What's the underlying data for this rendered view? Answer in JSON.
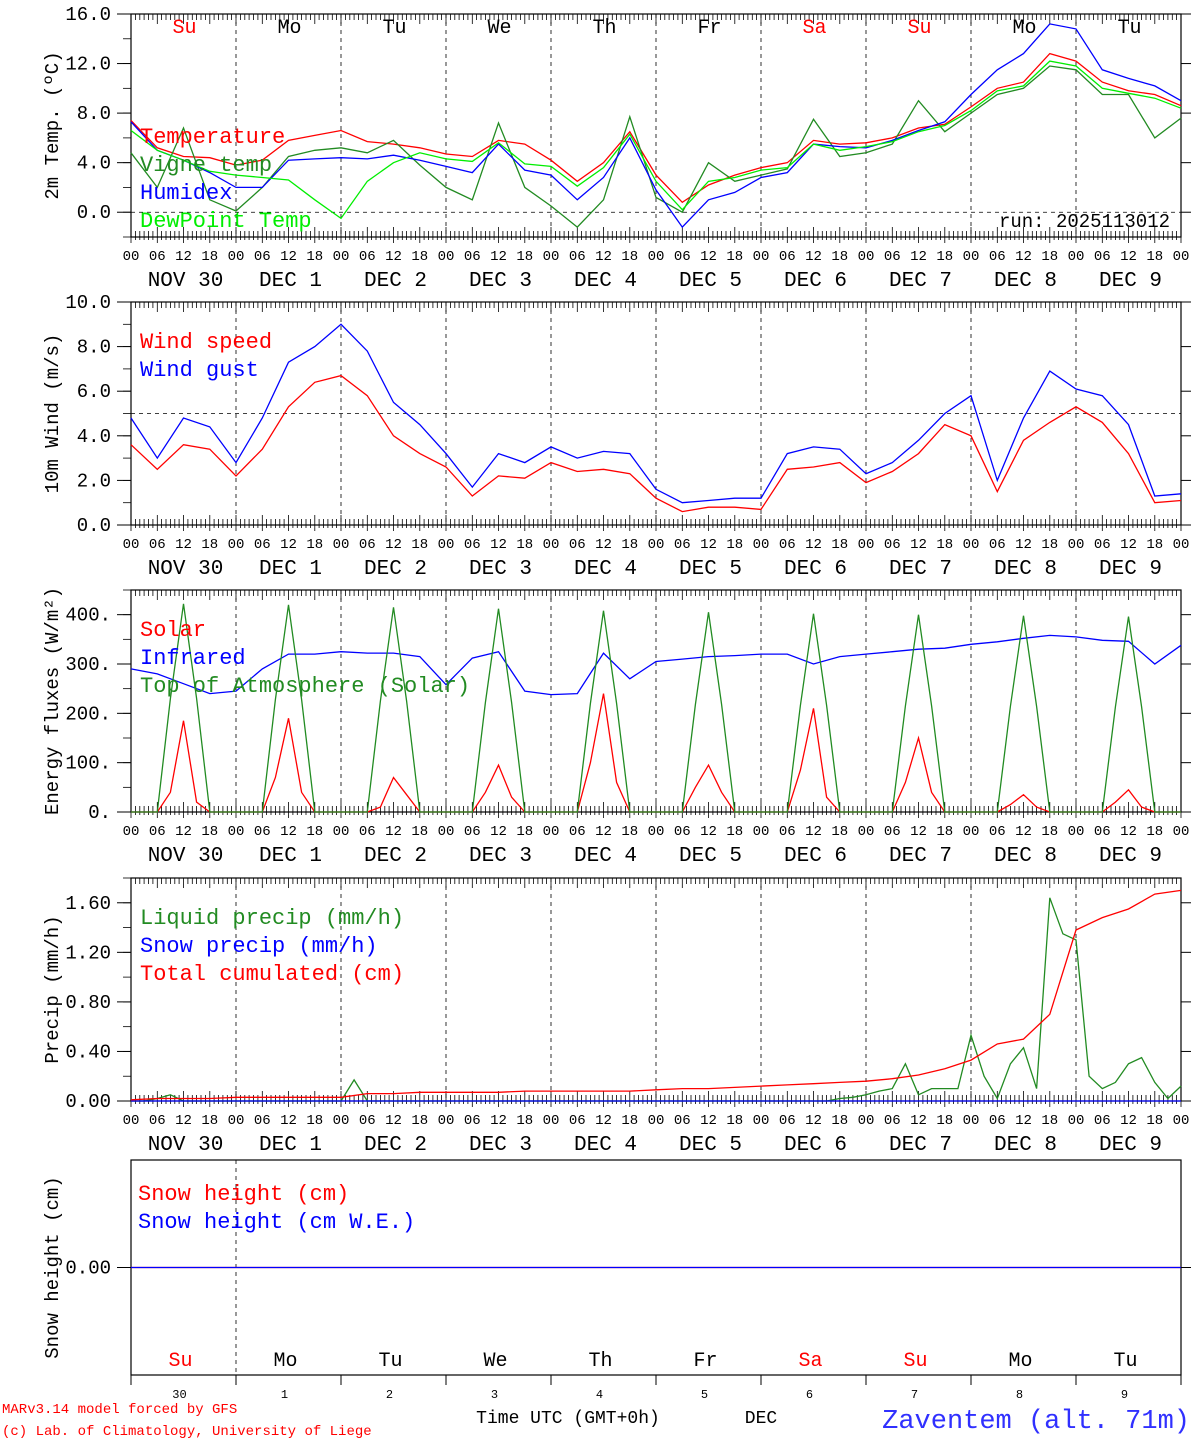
{
  "colors": {
    "temperature": "#ff0000",
    "vigne": "#228b22",
    "humidex": "#0000ff",
    "dewpoint": "#00ee00",
    "black": "#000000",
    "station": "#3030ff"
  },
  "days": [
    {
      "weekday": "Su",
      "date": "NOV 30",
      "num": "30",
      "weekend": true
    },
    {
      "weekday": "Mo",
      "date": "DEC  1",
      "num": "1",
      "weekend": false
    },
    {
      "weekday": "Tu",
      "date": "DEC  2",
      "num": "2",
      "weekend": false
    },
    {
      "weekday": "We",
      "date": "DEC  3",
      "num": "3",
      "weekend": false
    },
    {
      "weekday": "Th",
      "date": "DEC  4",
      "num": "4",
      "weekend": false
    },
    {
      "weekday": "Fr",
      "date": "DEC  5",
      "num": "5",
      "weekend": false
    },
    {
      "weekday": "Sa",
      "date": "DEC  6",
      "num": "6",
      "weekend": true
    },
    {
      "weekday": "Su",
      "date": "DEC  7",
      "num": "7",
      "weekend": true
    },
    {
      "weekday": "Mo",
      "date": "DEC  8",
      "num": "8",
      "weekend": false
    },
    {
      "weekday": "Tu",
      "date": "DEC  9",
      "num": "9",
      "weekend": false
    }
  ],
  "hour_labels": [
    "00",
    "06",
    "12",
    "18"
  ],
  "footer": {
    "model": "MARv3.14 model forced by GFS",
    "copyright": "(c) Lab. of Climatology, University of Liege",
    "xlabel": "Time UTC (GMT+0h)",
    "month": "DEC",
    "station": "Zaventem (alt. 71m)"
  },
  "chart_data": [
    {
      "type": "line",
      "ylabel": "2m Temp. (ºC)",
      "ylim": [
        -2,
        16
      ],
      "yticks": [
        "0.0",
        "4.0",
        "8.0",
        "12.0",
        "16.0"
      ],
      "xlim_hours": [
        0,
        240
      ],
      "step_hours": 6,
      "annotation": "run: 2025113012",
      "series": [
        {
          "name": "Temperature",
          "color": "#ff0000",
          "values": [
            7.4,
            5.2,
            4.5,
            4.4,
            3.8,
            4.2,
            5.8,
            6.2,
            6.6,
            5.7,
            5.5,
            5.2,
            4.7,
            4.5,
            5.8,
            5.5,
            4.2,
            2.5,
            4.0,
            6.5,
            3.0,
            0.8,
            2.2,
            3.0,
            3.6,
            4.0,
            5.8,
            5.5,
            5.6,
            6.0,
            6.8,
            7.1,
            8.5,
            10.0,
            10.5,
            12.8,
            12.2,
            10.5,
            9.8,
            9.5,
            8.6
          ]
        },
        {
          "name": "Vigne temp",
          "color": "#228b22",
          "values": [
            4.8,
            2.0,
            6.8,
            1.0,
            0.1,
            2.0,
            4.5,
            5.0,
            5.2,
            4.8,
            5.8,
            3.8,
            2.0,
            1.0,
            7.2,
            2.0,
            0.5,
            -1.2,
            1.0,
            7.7,
            1.2,
            0.0,
            4.0,
            2.5,
            3.0,
            3.5,
            7.5,
            4.5,
            4.8,
            5.5,
            9.0,
            6.5,
            8.0,
            9.5,
            10.0,
            11.8,
            11.5,
            9.5,
            9.5,
            6.0,
            7.6
          ]
        },
        {
          "name": "Humidex",
          "color": "#0000ff",
          "values": [
            7.3,
            5.0,
            4.2,
            3.2,
            2.0,
            2.0,
            4.2,
            4.3,
            4.4,
            4.3,
            4.6,
            4.2,
            3.7,
            3.2,
            5.5,
            3.4,
            3.0,
            1.0,
            2.8,
            6.0,
            1.8,
            -1.2,
            1.0,
            1.6,
            2.8,
            3.2,
            5.5,
            5.3,
            5.2,
            5.8,
            6.6,
            7.3,
            9.5,
            11.5,
            12.8,
            15.2,
            14.8,
            11.5,
            10.8,
            10.2,
            9.0
          ]
        },
        {
          "name": "DewPoint Temp",
          "color": "#00ee00",
          "values": [
            6.6,
            5.0,
            4.2,
            3.3,
            3.0,
            2.8,
            2.6,
            1.0,
            -0.5,
            2.5,
            4.0,
            4.8,
            4.3,
            4.1,
            5.6,
            3.9,
            3.7,
            2.1,
            3.6,
            6.3,
            2.5,
            0.2,
            2.5,
            2.8,
            3.4,
            3.6,
            5.5,
            5.0,
            5.3,
            5.7,
            6.5,
            7.0,
            8.2,
            9.8,
            10.2,
            12.2,
            11.8,
            10.0,
            9.6,
            9.2,
            8.4
          ]
        }
      ]
    },
    {
      "type": "line",
      "ylabel": "10m Wind (m/s)",
      "ylim": [
        0,
        10
      ],
      "yticks": [
        "0.0",
        "2.0",
        "4.0",
        "6.0",
        "8.0",
        "10.0"
      ],
      "reference_line": 5,
      "step_hours": 6,
      "series": [
        {
          "name": "Wind speed",
          "color": "#ff0000",
          "values": [
            3.6,
            2.5,
            3.6,
            3.4,
            2.2,
            3.4,
            5.3,
            6.4,
            6.7,
            5.8,
            4.0,
            3.2,
            2.6,
            1.3,
            2.2,
            2.1,
            2.8,
            2.4,
            2.5,
            2.3,
            1.2,
            0.6,
            0.8,
            0.8,
            0.7,
            2.5,
            2.6,
            2.8,
            1.9,
            2.4,
            3.2,
            4.5,
            4.0,
            1.5,
            3.8,
            4.6,
            5.3,
            4.6,
            3.2,
            1.0,
            1.1
          ]
        },
        {
          "name": "Wind gust",
          "color": "#0000ff",
          "values": [
            4.8,
            3.0,
            4.8,
            4.4,
            2.8,
            4.8,
            7.3,
            8.0,
            9.0,
            7.8,
            5.5,
            4.5,
            3.2,
            1.7,
            3.2,
            2.8,
            3.5,
            3.0,
            3.3,
            3.2,
            1.6,
            1.0,
            1.1,
            1.2,
            1.2,
            3.2,
            3.5,
            3.4,
            2.3,
            2.8,
            3.8,
            5.0,
            5.8,
            2.0,
            4.8,
            6.9,
            6.1,
            5.8,
            4.5,
            1.3,
            1.4
          ]
        }
      ]
    },
    {
      "type": "line",
      "ylabel": "Energy fluxes (W/m²)",
      "ylim": [
        0,
        450
      ],
      "yticks": [
        "0.",
        "100.",
        "200.",
        "300.",
        "400."
      ],
      "series": [
        {
          "name": "Solar",
          "color": "#ff0000",
          "step_hours": 3,
          "values": [
            0,
            0,
            0,
            40,
            185,
            20,
            0,
            0,
            0,
            0,
            0,
            70,
            190,
            40,
            0,
            0,
            0,
            0,
            0,
            10,
            70,
            35,
            0,
            0,
            0,
            0,
            0,
            40,
            95,
            30,
            0,
            0,
            0,
            0,
            0,
            100,
            240,
            60,
            0,
            0,
            0,
            0,
            0,
            50,
            95,
            40,
            0,
            0,
            0,
            0,
            0,
            85,
            210,
            30,
            0,
            0,
            0,
            0,
            0,
            60,
            150,
            40,
            0,
            0,
            0,
            0,
            0,
            15,
            35,
            10,
            0,
            0,
            0,
            0,
            0,
            20,
            45,
            10,
            0,
            0,
            0
          ]
        },
        {
          "name": "Infrared",
          "color": "#0000ff",
          "step_hours": 6,
          "values": [
            290,
            280,
            260,
            240,
            245,
            290,
            320,
            320,
            325,
            322,
            322,
            315,
            258,
            312,
            325,
            245,
            238,
            240,
            322,
            270,
            305,
            310,
            315,
            317,
            320,
            320,
            300,
            315,
            320,
            325,
            330,
            332,
            340,
            345,
            352,
            358,
            355,
            348,
            346,
            300,
            338
          ]
        },
        {
          "name": "Top of Atmosphere (Solar)",
          "color": "#228b22",
          "step_hours": 3,
          "values": [
            0,
            0,
            0,
            230,
            422,
            230,
            0,
            0,
            0,
            0,
            0,
            228,
            420,
            228,
            0,
            0,
            0,
            0,
            0,
            225,
            415,
            225,
            0,
            0,
            0,
            0,
            0,
            222,
            412,
            222,
            0,
            0,
            0,
            0,
            0,
            220,
            408,
            220,
            0,
            0,
            0,
            0,
            0,
            218,
            405,
            218,
            0,
            0,
            0,
            0,
            0,
            216,
            402,
            216,
            0,
            0,
            0,
            0,
            0,
            215,
            400,
            215,
            0,
            0,
            0,
            0,
            0,
            214,
            398,
            214,
            0,
            0,
            0,
            0,
            0,
            213,
            396,
            213,
            0,
            0,
            0
          ]
        }
      ]
    },
    {
      "type": "line",
      "ylabel": "Precip (mm/h)",
      "ylim": [
        0,
        1.8
      ],
      "yticks": [
        "0.00",
        "0.40",
        "0.80",
        "1.20",
        "1.60"
      ],
      "series": [
        {
          "name": "Liquid precip (mm/h)",
          "color": "#228b22",
          "step_hours": 3,
          "values": [
            0,
            0,
            0.02,
            0.05,
            0,
            0,
            0,
            0,
            0,
            0,
            0,
            0,
            0,
            0,
            0,
            0,
            0,
            0.17,
            0,
            0,
            0,
            0,
            0,
            0,
            0,
            0,
            0,
            0,
            0,
            0,
            0,
            0,
            0,
            0,
            0,
            0,
            0,
            0,
            0,
            0,
            0,
            0,
            0,
            0,
            0,
            0,
            0,
            0,
            0,
            0,
            0,
            0,
            0,
            0,
            0.02,
            0.03,
            0.05,
            0.08,
            0.1,
            0.3,
            0.05,
            0.1,
            0.1,
            0.1,
            0.53,
            0.2,
            0.02,
            0.3,
            0.43,
            0.1,
            1.64,
            1.35,
            1.3,
            0.2,
            0.1,
            0.15,
            0.3,
            0.35,
            0.15,
            0.02,
            0.12
          ]
        },
        {
          "name": "Snow precip (mm/h)",
          "color": "#0000ff",
          "step_hours": 240,
          "values": [
            0,
            0
          ]
        },
        {
          "name": "Total cumulated (cm)",
          "color": "#ff0000",
          "step_hours": 6,
          "values": [
            0.01,
            0.02,
            0.02,
            0.02,
            0.03,
            0.03,
            0.03,
            0.03,
            0.03,
            0.06,
            0.06,
            0.07,
            0.07,
            0.07,
            0.07,
            0.08,
            0.08,
            0.08,
            0.08,
            0.08,
            0.09,
            0.1,
            0.1,
            0.11,
            0.12,
            0.13,
            0.14,
            0.15,
            0.16,
            0.18,
            0.21,
            0.26,
            0.33,
            0.46,
            0.5,
            0.7,
            1.38,
            1.48,
            1.55,
            1.67,
            1.7
          ]
        }
      ]
    },
    {
      "type": "line",
      "ylabel": "Snow height (cm)",
      "ylim": [
        -1,
        1
      ],
      "yticks": [
        "0.00"
      ],
      "series": [
        {
          "name": "Snow height (cm)",
          "color": "#ff0000",
          "step_hours": 240,
          "values": [
            0,
            0
          ]
        },
        {
          "name": "Snow height (cm W.E.)",
          "color": "#0000ff",
          "step_hours": 240,
          "values": [
            0,
            0
          ]
        }
      ]
    }
  ]
}
